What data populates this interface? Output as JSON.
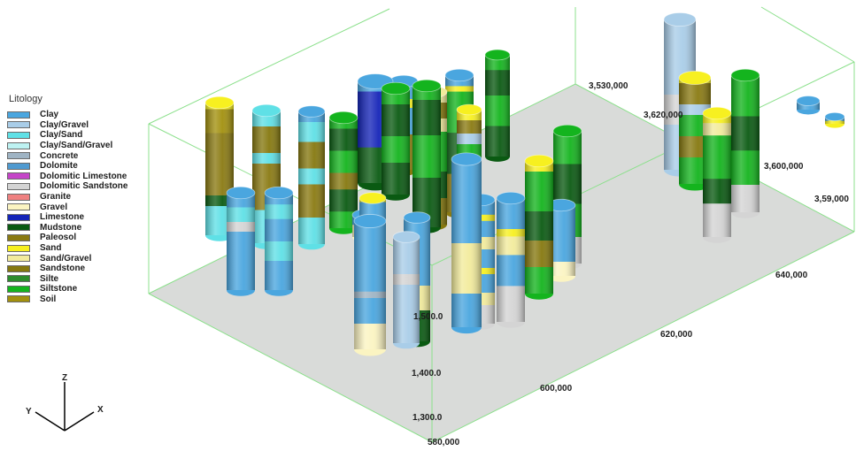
{
  "legend": {
    "title": "Litology",
    "items": [
      {
        "label": "Clay",
        "color": "#4aa6df"
      },
      {
        "label": "Clay/Gravel",
        "color": "#a9cde8"
      },
      {
        "label": "Clay/Sand",
        "color": "#5fe0e6"
      },
      {
        "label": "Clay/Sand/Gravel",
        "color": "#bdf2f2"
      },
      {
        "label": "Concrete",
        "color": "#9fb4c4"
      },
      {
        "label": "Dolomite",
        "color": "#4f9ad0"
      },
      {
        "label": "Dolomitic Limestone",
        "color": "#c545c8"
      },
      {
        "label": "Dolomitic Sandstone",
        "color": "#d4d4d4"
      },
      {
        "label": "Granite",
        "color": "#ef8080"
      },
      {
        "label": "Gravel",
        "color": "#fbf4c2"
      },
      {
        "label": "Limestone",
        "color": "#1424b8"
      },
      {
        "label": "Mudstone",
        "color": "#0a5a12"
      },
      {
        "label": "Paleosol",
        "color": "#8a7a12"
      },
      {
        "label": "Sand",
        "color": "#f7f020"
      },
      {
        "label": "Sand/Gravel",
        "color": "#f2eb9c"
      },
      {
        "label": "Sandstone",
        "color": "#85780f"
      },
      {
        "label": "Silte",
        "color": "#2d8c2d"
      },
      {
        "label": "Siltstone",
        "color": "#14b41e"
      },
      {
        "label": "Soil",
        "color": "#a2900e"
      }
    ]
  },
  "axes": {
    "z_ticks": [
      "1,500.0",
      "1,400.0",
      "1,300.0"
    ],
    "x_ticks": [
      "580,000",
      "600,000",
      "620,000",
      "640,000"
    ],
    "y_ticks": [
      "3,530,000",
      "3,620,000",
      "3,600,000",
      "3,59,000"
    ],
    "triad": {
      "z": "Z",
      "y": "Y",
      "x": "X"
    }
  },
  "boreholes": [
    {
      "bands": [
        [
          "Sand",
          0.05
        ],
        [
          "Soil",
          0.18
        ],
        [
          "Paleosol",
          0.47
        ],
        [
          "Mudstone",
          0.08
        ],
        [
          "Clay/Sand",
          0.22
        ]
      ]
    },
    {
      "bands": [
        [
          "Clay/Sand",
          0.12
        ],
        [
          "Sandstone",
          0.2
        ],
        [
          "Clay/Sand",
          0.08
        ],
        [
          "Paleosol",
          0.35
        ],
        [
          "Clay/Sand",
          0.25
        ]
      ]
    },
    {
      "bands": [
        [
          "Clay",
          0.08
        ],
        [
          "Clay/Sand",
          0.15
        ],
        [
          "Sandstone",
          0.2
        ],
        [
          "Clay/Sand",
          0.12
        ],
        [
          "Paleosol",
          0.25
        ],
        [
          "Clay/Sand",
          0.2
        ]
      ]
    },
    {
      "bands": [
        [
          "Siltstone",
          0.1
        ],
        [
          "Mudstone",
          0.2
        ],
        [
          "Siltstone",
          0.2
        ],
        [
          "Sandstone",
          0.15
        ],
        [
          "Mudstone",
          0.2
        ],
        [
          "Siltstone",
          0.15
        ]
      ]
    },
    {
      "bands": [
        [
          "Clay",
          0.1
        ],
        [
          "Limestone",
          0.55
        ],
        [
          "Mudstone",
          0.35
        ]
      ]
    },
    {
      "bands": [
        [
          "Siltstone",
          0.15
        ],
        [
          "Mudstone",
          0.3
        ],
        [
          "Siltstone",
          0.25
        ],
        [
          "Mudstone",
          0.3
        ]
      ]
    },
    {
      "bands": [
        [
          "Clay",
          0.2
        ],
        [
          "Sand",
          0.1
        ],
        [
          "Clay",
          0.3
        ],
        [
          "Sandstone",
          0.4
        ]
      ]
    },
    {
      "bands": [
        [
          "Siltstone",
          0.1
        ],
        [
          "Mudstone",
          0.25
        ],
        [
          "Siltstone",
          0.3
        ],
        [
          "Mudstone",
          0.35
        ]
      ]
    },
    {
      "bands": [
        [
          "Clay",
          0.08
        ],
        [
          "Sand",
          0.04
        ],
        [
          "Siltstone",
          0.3
        ],
        [
          "Mudstone",
          0.3
        ],
        [
          "Paleosol",
          0.28
        ]
      ]
    },
    {
      "bands": [
        [
          "Siltstone",
          0.15
        ],
        [
          "Mudstone",
          0.25
        ],
        [
          "Siltstone",
          0.3
        ],
        [
          "Mudstone",
          0.3
        ]
      ]
    },
    {
      "bands": [
        [
          "Clay/Gravel",
          0.5
        ],
        [
          "Dolomitic Sandstone",
          0.2
        ],
        [
          "Clay/Gravel",
          0.3
        ]
      ]
    },
    {
      "bands": [
        [
          "Sand",
          0.05
        ],
        [
          "Paleosol",
          0.2
        ],
        [
          "Clay/Gravel",
          0.1
        ],
        [
          "Siltstone",
          0.2
        ],
        [
          "Sandstone",
          0.2
        ],
        [
          "Siltstone",
          0.25
        ]
      ]
    },
    {
      "bands": [
        [
          "Sand",
          0.08
        ],
        [
          "Sand/Gravel",
          0.1
        ],
        [
          "Siltstone",
          0.35
        ],
        [
          "Mudstone",
          0.2
        ],
        [
          "Dolomitic Sandstone",
          0.27
        ]
      ]
    },
    {
      "bands": [
        [
          "Siltstone",
          0.3
        ],
        [
          "Mudstone",
          0.25
        ],
        [
          "Siltstone",
          0.25
        ],
        [
          "Dolomitic Sandstone",
          0.2
        ]
      ]
    },
    {
      "bands": [
        [
          "Clay",
          0.15
        ],
        [
          "Clay/Sand",
          0.15
        ],
        [
          "Dolomitic Sandstone",
          0.1
        ],
        [
          "Clay",
          0.6
        ]
      ]
    },
    {
      "bands": [
        [
          "Clay",
          0.12
        ],
        [
          "Clay/Sand",
          0.15
        ],
        [
          "Clay",
          0.23
        ],
        [
          "Clay/Sand",
          0.2
        ],
        [
          "Clay",
          0.3
        ]
      ]
    },
    {
      "bands": [
        [
          "Clay",
          0.55
        ],
        [
          "Concrete",
          0.05
        ],
        [
          "Clay",
          0.2
        ],
        [
          "Gravel",
          0.2
        ]
      ]
    },
    {
      "bands": [
        [
          "Sand",
          0.05
        ],
        [
          "Clay",
          0.25
        ],
        [
          "Siltstone",
          0.3
        ],
        [
          "Sandstone",
          0.25
        ],
        [
          "Mudstone",
          0.15
        ]
      ]
    },
    {
      "bands": [
        [
          "Clay",
          0.55
        ],
        [
          "Sand/Gravel",
          0.2
        ],
        [
          "Mudstone",
          0.25
        ]
      ]
    },
    {
      "bands": [
        [
          "Clay",
          0.12
        ],
        [
          "Sand",
          0.05
        ],
        [
          "Clay",
          0.13
        ],
        [
          "Sand/Gravel",
          0.1
        ],
        [
          "Clay",
          0.15
        ],
        [
          "Sand",
          0.05
        ],
        [
          "Clay",
          0.15
        ],
        [
          "Sand/Gravel",
          0.1
        ],
        [
          "Dolomitic Sandstone",
          0.15
        ]
      ]
    },
    {
      "bands": [
        [
          "Clay",
          0.25
        ],
        [
          "Sand",
          0.06
        ],
        [
          "Sand/Gravel",
          0.15
        ],
        [
          "Clay",
          0.25
        ],
        [
          "Dolomitic Sandstone",
          0.29
        ]
      ]
    },
    {
      "bands": [
        [
          "Sand",
          0.08
        ],
        [
          "Siltstone",
          0.3
        ],
        [
          "Mudstone",
          0.22
        ],
        [
          "Sandstone",
          0.2
        ],
        [
          "Siltstone",
          0.2
        ]
      ]
    },
    {
      "bands": [
        [
          "Clay",
          0.5
        ],
        [
          "Sand/Gravel",
          0.3
        ],
        [
          "Clay",
          0.2
        ]
      ]
    },
    {
      "bands": [
        [
          "Clay",
          0.8
        ],
        [
          "Gravel",
          0.2
        ]
      ]
    },
    {
      "bands": [
        [
          "Clay",
          0.45
        ],
        [
          "Gravel",
          0.55
        ]
      ]
    },
    {
      "bands": [
        [
          "Clay/Gravel",
          0.35
        ],
        [
          "Dolomitic Sandstone",
          0.1
        ],
        [
          "Clay/Gravel",
          0.55
        ]
      ]
    },
    {
      "bands": [
        [
          "Sand/Gravel",
          0.08
        ],
        [
          "Sandstone",
          0.12
        ],
        [
          "Sand/Gravel",
          0.1
        ],
        [
          "Siltstone",
          0.3
        ],
        [
          "Mudstone",
          0.2
        ],
        [
          "Sandstone",
          0.2
        ]
      ]
    },
    {
      "bands": [
        [
          "Sand",
          0.08
        ],
        [
          "Paleosol",
          0.1
        ],
        [
          "Clay/Gravel",
          0.08
        ],
        [
          "Siltstone",
          0.34
        ],
        [
          "Mudstone",
          0.2
        ],
        [
          "Sandstone",
          0.2
        ]
      ]
    },
    {
      "bands": [
        [
          "Siltstone",
          0.25
        ],
        [
          "Mudstone",
          0.3
        ],
        [
          "Siltstone",
          0.25
        ],
        [
          "Dolomitic Sandstone",
          0.2
        ]
      ]
    },
    {
      "bands": [
        [
          "Clay",
          1.0
        ]
      ]
    },
    {
      "bands": [
        [
          "Clay",
          0.6
        ],
        [
          "Sand",
          0.4
        ]
      ]
    }
  ]
}
